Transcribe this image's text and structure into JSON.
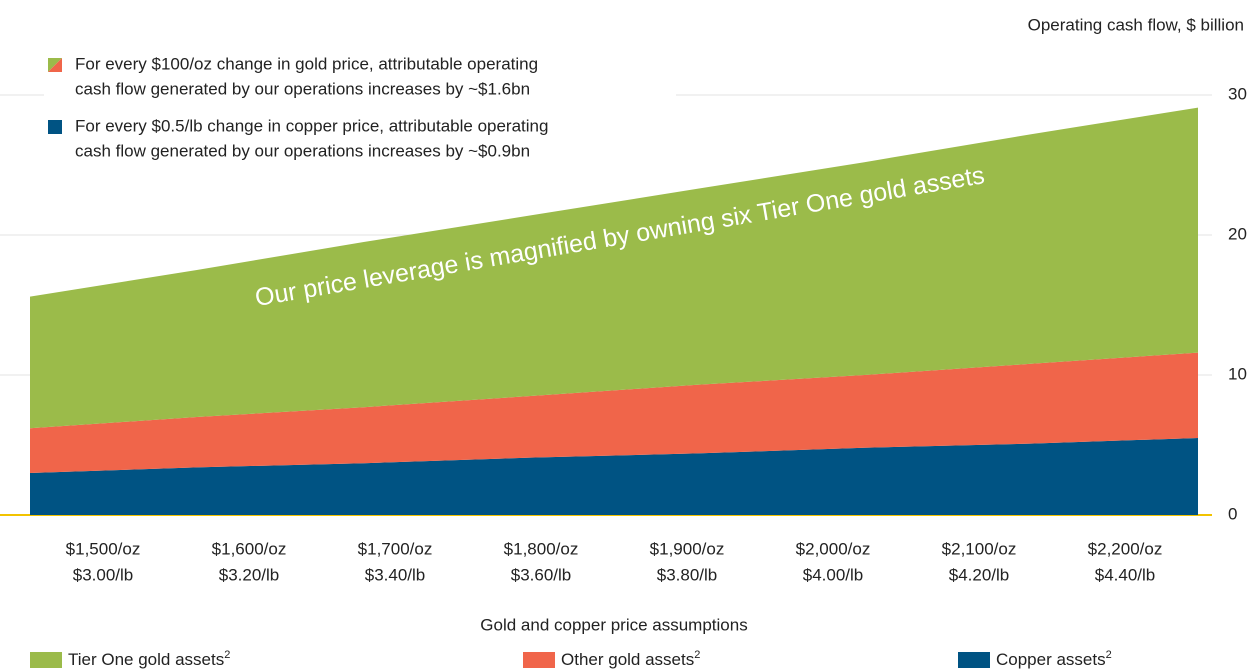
{
  "chart_data": {
    "type": "stacked_area",
    "y_axis_label": "Operating cash flow, $ billion",
    "x_axis_label": "Gold and copper price assumptions",
    "notes": [
      {
        "lines": [
          "For every $100/oz change in gold price, attributable operating",
          "cash flow generated by our operations increases by ~$1.6bn"
        ]
      },
      {
        "lines": [
          "For every $0.5/lb change in copper price, attributable operating",
          "cash flow generated by our operations increases by ~$0.9bn"
        ]
      }
    ],
    "annotation": "Our price leverage is magnified by owning six Tier One gold assets",
    "categories": [
      [
        "$1,500/oz",
        "$3.00/lb"
      ],
      [
        "$1,600/oz",
        "$3.20/lb"
      ],
      [
        "$1,700/oz",
        "$3.40/lb"
      ],
      [
        "$1,800/oz",
        "$3.60/lb"
      ],
      [
        "$1,900/oz",
        "$3.80/lb"
      ],
      [
        "$2,000/oz",
        "$4.00/lb"
      ],
      [
        "$2,100/oz",
        "$4.20/lb"
      ],
      [
        "$2,200/oz",
        "$4.40/lb"
      ]
    ],
    "series": [
      {
        "name": "Copper assets",
        "note": "2",
        "color": "#005383",
        "values": [
          3.0,
          3.4,
          3.7,
          4.1,
          4.4,
          4.8,
          5.1,
          5.5
        ]
      },
      {
        "name": "Other gold assets",
        "note": "2",
        "color": "#f0654a",
        "values": [
          3.2,
          3.6,
          4.0,
          4.4,
          4.9,
          5.2,
          5.7,
          6.1
        ]
      },
      {
        "name": "Tier One gold assets",
        "note": "2",
        "color": "#9bbb4a",
        "values": [
          9.4,
          10.5,
          11.8,
          12.9,
          14.0,
          15.2,
          16.4,
          17.5
        ]
      }
    ],
    "ylim": [
      0,
      30
    ],
    "yticks": [
      0,
      10,
      20,
      30
    ],
    "grid": true
  }
}
